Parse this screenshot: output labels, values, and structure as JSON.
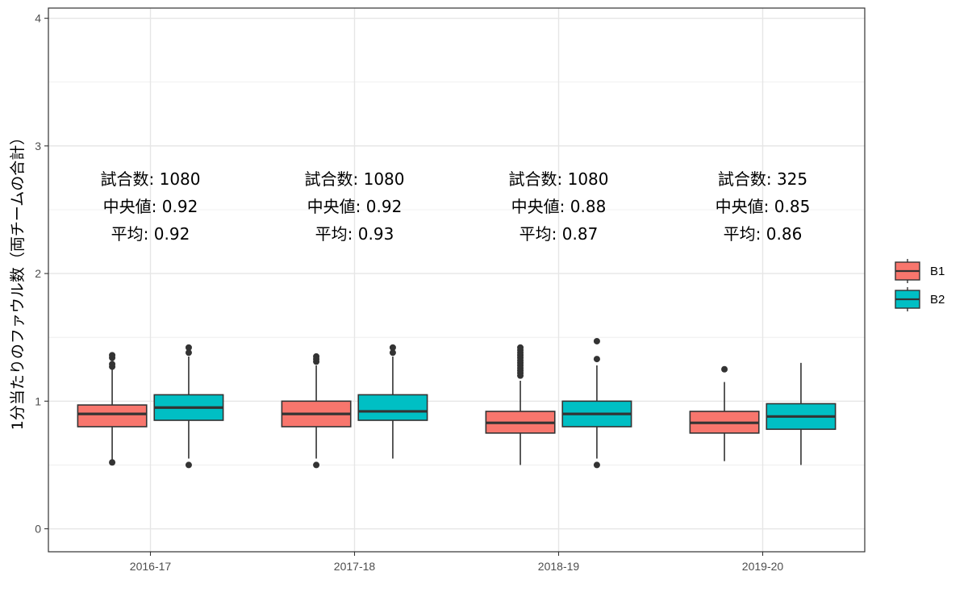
{
  "chart_data": {
    "type": "boxplot",
    "title": "",
    "xlabel": "",
    "ylabel": "1分当たりのファウル数（両チームの合計）",
    "ylim": [
      -0.18,
      4.08
    ],
    "y_ticks": [
      0,
      1,
      2,
      3,
      4
    ],
    "grid": true,
    "legend_position": "right",
    "categories": [
      "2016-17",
      "2017-18",
      "2018-19",
      "2019-20"
    ],
    "series": [
      {
        "name": "B1",
        "color": "#F8766D",
        "boxes": [
          {
            "min": 0.53,
            "q1": 0.8,
            "median": 0.9,
            "q3": 0.97,
            "max": 1.25,
            "outliers": [
              1.27,
              1.29,
              1.34,
              1.36,
              0.52
            ]
          },
          {
            "min": 0.55,
            "q1": 0.8,
            "median": 0.9,
            "q3": 1.0,
            "max": 1.28,
            "outliers": [
              1.31,
              1.33,
              1.35,
              0.5
            ]
          },
          {
            "min": 0.5,
            "q1": 0.75,
            "median": 0.83,
            "q3": 0.92,
            "max": 1.16,
            "outliers": [
              1.2,
              1.22,
              1.24,
              1.26,
              1.28,
              1.3,
              1.32,
              1.34,
              1.36,
              1.38,
              1.4,
              1.42
            ]
          },
          {
            "min": 0.53,
            "q1": 0.75,
            "median": 0.83,
            "q3": 0.92,
            "max": 1.15,
            "outliers": [
              1.25
            ]
          }
        ]
      },
      {
        "name": "B2",
        "color": "#00BFC4",
        "boxes": [
          {
            "min": 0.55,
            "q1": 0.85,
            "median": 0.95,
            "q3": 1.05,
            "max": 1.35,
            "outliers": [
              1.38,
              1.42,
              0.5
            ]
          },
          {
            "min": 0.55,
            "q1": 0.85,
            "median": 0.92,
            "q3": 1.05,
            "max": 1.35,
            "outliers": [
              1.38,
              1.42
            ]
          },
          {
            "min": 0.55,
            "q1": 0.8,
            "median": 0.9,
            "q3": 1.0,
            "max": 1.28,
            "outliers": [
              1.33,
              1.47,
              0.5
            ]
          },
          {
            "min": 0.5,
            "q1": 0.78,
            "median": 0.88,
            "q3": 0.98,
            "max": 1.3,
            "outliers": []
          }
        ]
      }
    ],
    "annotations": [
      {
        "line1": "試合数: 1080",
        "line2": "中央値: 0.92",
        "line3": "平均: 0.92"
      },
      {
        "line1": "試合数: 1080",
        "line2": "中央値: 0.92",
        "line3": "平均: 0.93"
      },
      {
        "line1": "試合数: 1080",
        "line2": "中央値: 0.88",
        "line3": "平均: 0.87"
      },
      {
        "line1": "試合数: 325",
        "line2": "中央値: 0.85",
        "line3": "平均: 0.86"
      }
    ]
  }
}
